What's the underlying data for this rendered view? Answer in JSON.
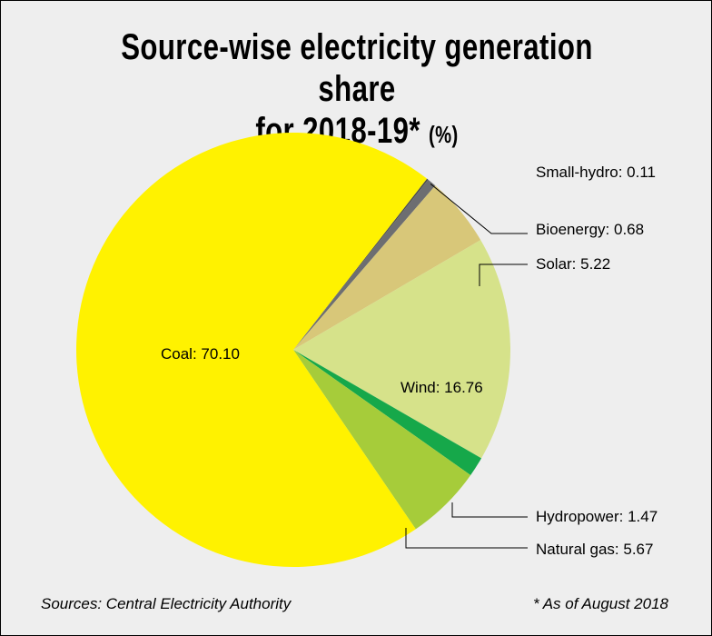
{
  "chart_data": {
    "type": "pie",
    "title_main": "Source-wise electricity generation share",
    "title_line2": "for 2018-19*",
    "title_unit": "(%)",
    "start_angle_deg": -52,
    "slices": [
      {
        "name": "Small-hydro",
        "value": 0.11,
        "color": "#4a4a4a",
        "label": "Small-hydro: 0.11"
      },
      {
        "name": "Bioenergy",
        "value": 0.68,
        "color": "#6d6e71",
        "label": "Bioenergy: 0.68"
      },
      {
        "name": "Solar",
        "value": 5.22,
        "color": "#d8c779",
        "label": "Solar: 5.22"
      },
      {
        "name": "Wind",
        "value": 16.76,
        "color": "#d6e28a",
        "label": "Wind: 16.76"
      },
      {
        "name": "Hydropower",
        "value": 1.47,
        "color": "#16a84a",
        "label": "Hydropower: 1.47"
      },
      {
        "name": "Natural gas",
        "value": 5.67,
        "color": "#a6cc3a",
        "label": "Natural gas: 5.67"
      },
      {
        "name": "Coal",
        "value": 70.1,
        "color": "#fff200",
        "label": "Coal: 70.10"
      }
    ]
  },
  "source": "Sources: Central Electricity Authority",
  "footnote": "* As of August 2018"
}
